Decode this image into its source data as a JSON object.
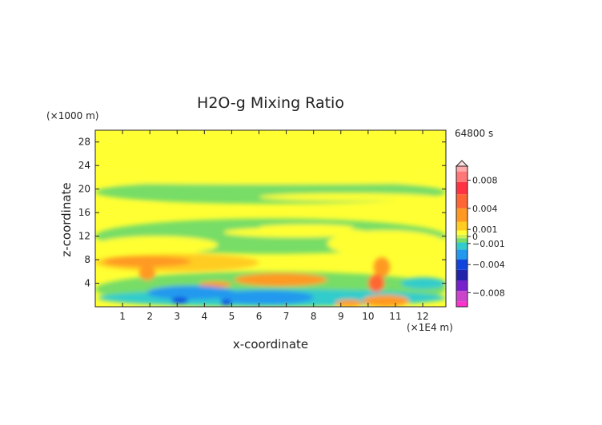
{
  "chart_data": {
    "type": "heatmap",
    "title": "H2O-g Mixing Ratio",
    "xlabel": "x-coordinate",
    "ylabel": "z-coordinate",
    "x_unit": "(×1E4 m)",
    "y_unit": "(×1000 m)",
    "time_label": "64800 s",
    "xlim": [
      0,
      12.85
    ],
    "ylim": [
      0,
      30
    ],
    "x_ticks": [
      1,
      2,
      3,
      4,
      5,
      6,
      7,
      8,
      9,
      10,
      11,
      12
    ],
    "y_ticks": [
      4,
      8,
      12,
      16,
      20,
      24,
      28
    ],
    "colorbar": {
      "labeled_levels": [
        0.008,
        0.004,
        0.001,
        0,
        -0.001,
        -0.004,
        -0.008
      ],
      "labels": [
        "0.008",
        "0.004",
        "0.001",
        "0",
        "−0.001",
        "−0.004",
        "−0.008"
      ],
      "range": [
        -0.01,
        0.01
      ],
      "stops": [
        {
          "v": -0.01,
          "color": "#ff33cc"
        },
        {
          "v": -0.0085,
          "color": "#cc44cc"
        },
        {
          "v": -0.007,
          "color": "#7722cc"
        },
        {
          "v": -0.0055,
          "color": "#2222aa"
        },
        {
          "v": -0.004,
          "color": "#1144dd"
        },
        {
          "v": -0.0025,
          "color": "#2299ee"
        },
        {
          "v": -0.0012,
          "color": "#33cccc"
        },
        {
          "v": -0.0005,
          "color": "#77dd66"
        },
        {
          "v": 0.0,
          "color": "#ccee55"
        },
        {
          "v": 0.0005,
          "color": "#ffff33"
        },
        {
          "v": 0.0012,
          "color": "#ffcc22"
        },
        {
          "v": 0.003,
          "color": "#ff9922"
        },
        {
          "v": 0.005,
          "color": "#ff6633"
        },
        {
          "v": 0.007,
          "color": "#ff3344"
        },
        {
          "v": 0.0085,
          "color": "#ff7777"
        },
        {
          "v": 0.01,
          "color": "#ffaaaa"
        }
      ]
    },
    "background_value": 0.0008,
    "regions": [
      {
        "x": [
          0,
          12.85
        ],
        "z": [
          21.5,
          30
        ],
        "value": 0.0008
      },
      {
        "x": [
          0,
          12.85
        ],
        "z": [
          17.5,
          21.5
        ],
        "value": -0.0003
      },
      {
        "x": [
          0,
          12.85
        ],
        "z": [
          9,
          15
        ],
        "value": -0.0003
      },
      {
        "x": [
          0,
          12.85
        ],
        "z": [
          0,
          6
        ],
        "value": -0.0003
      },
      {
        "x": [
          0,
          4.5
        ],
        "z": [
          9,
          12
        ],
        "value": 0.0008
      },
      {
        "x": [
          6,
          9.5
        ],
        "z": [
          13,
          14
        ],
        "value": 0.0008
      },
      {
        "x": [
          0,
          12.85
        ],
        "z": [
          20.8,
          21.6
        ],
        "value": 0.0008
      },
      {
        "x": [
          0.3,
          2.5
        ],
        "z": [
          16.5,
          17.5
        ],
        "value": 0.0008
      },
      {
        "x": [
          6,
          12.5
        ],
        "z": [
          18,
          19.3
        ],
        "value": 0.0008
      },
      {
        "x": [
          4.7,
          10
        ],
        "z": [
          11.8,
          13.5
        ],
        "value": 0.0008
      },
      {
        "x": [
          8.5,
          12.85
        ],
        "z": [
          8.5,
          13
        ],
        "value": 0.0008
      },
      {
        "x": [
          0,
          6
        ],
        "z": [
          6,
          9
        ],
        "value": 0.001
      },
      {
        "x": [
          0.3,
          3.5
        ],
        "z": [
          6.8,
          8.6
        ],
        "value": 0.003
      },
      {
        "x": [
          1.6,
          2.2
        ],
        "z": [
          4.5,
          7
        ],
        "value": 0.003
      },
      {
        "x": [
          5.1,
          8.5
        ],
        "z": [
          3.5,
          5.7
        ],
        "value": 0.003
      },
      {
        "x": [
          3.8,
          5
        ],
        "z": [
          3.3,
          4.3
        ],
        "value": 0.003
      },
      {
        "x": [
          0.1,
          12.85
        ],
        "z": [
          0,
          3
        ],
        "value": -0.0012
      },
      {
        "x": [
          1.9,
          5.1
        ],
        "z": [
          1.2,
          3.6
        ],
        "value": -0.0025
      },
      {
        "x": [
          4.5,
          8
        ],
        "z": [
          0.4,
          2.8
        ],
        "value": -0.0025
      },
      {
        "x": [
          2.8,
          3.4
        ],
        "z": [
          0.5,
          1.6
        ],
        "value": -0.004
      },
      {
        "x": [
          4.6,
          5
        ],
        "z": [
          0.2,
          1.2
        ],
        "value": -0.004
      },
      {
        "x": [
          10.2,
          10.8
        ],
        "z": [
          5,
          8.5
        ],
        "value": 0.003
      },
      {
        "x": [
          10,
          10.6
        ],
        "z": [
          2.5,
          5.5
        ],
        "value": 0.0045
      },
      {
        "x": [
          9.8,
          11.5
        ],
        "z": [
          0,
          2
        ],
        "value": 0.003
      },
      {
        "x": [
          8.8,
          9.8
        ],
        "z": [
          0,
          1.2
        ],
        "value": 0.003
      },
      {
        "x": [
          11.2,
          12.85
        ],
        "z": [
          3,
          5
        ],
        "value": -0.0012
      }
    ]
  }
}
